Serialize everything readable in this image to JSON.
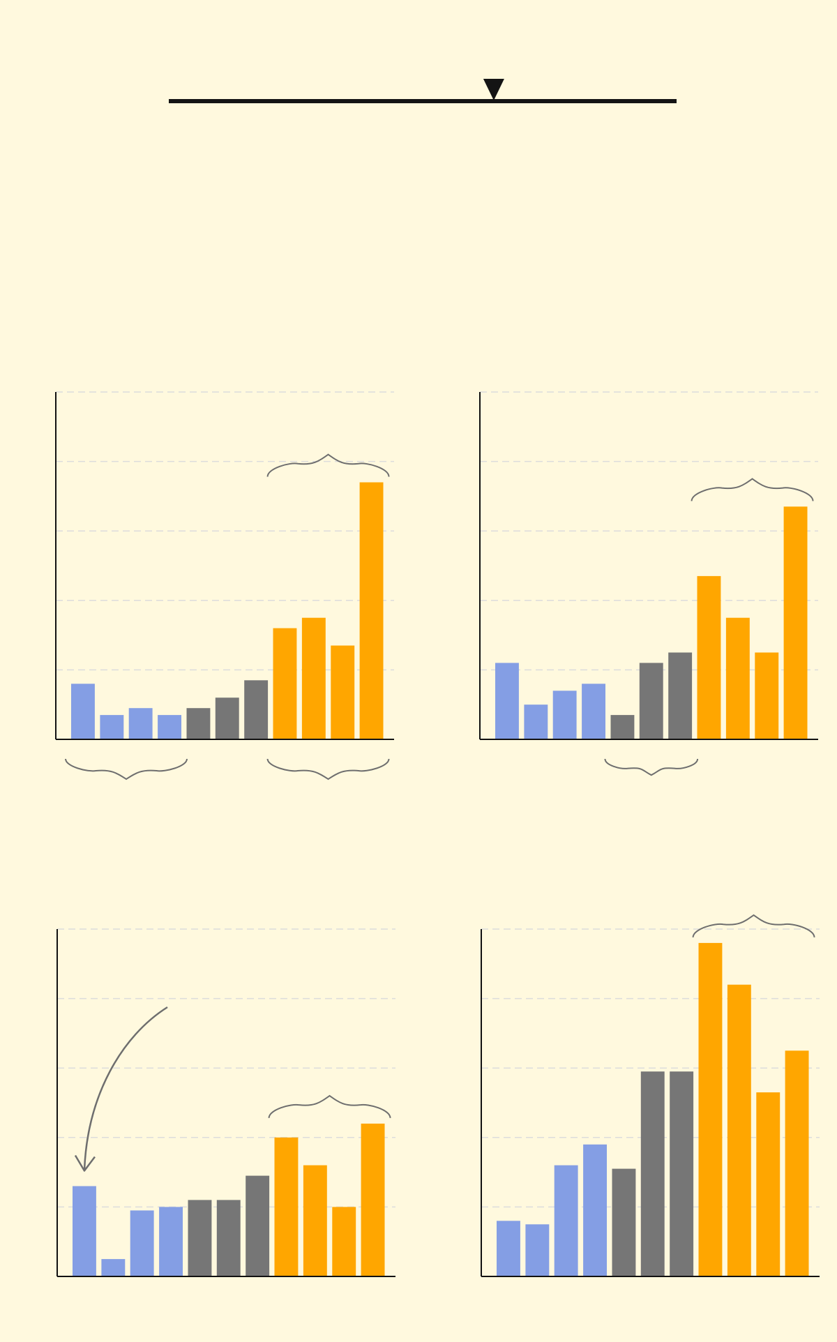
{
  "colors": {
    "background": "#fff9de",
    "blue": "#849ee4",
    "gray": "#767676",
    "orange": "#ffa600",
    "axis": "#111111",
    "grid": "#dcdcdc",
    "bracket": "#6e6e6e",
    "slider": "#141414"
  },
  "slider": {
    "value": 0.64
  },
  "chart_data": [
    {
      "type": "bar",
      "ylim": [
        0,
        5
      ],
      "grid": true,
      "values": [
        0.8,
        0.35,
        0.45,
        0.35,
        0.45,
        0.6,
        0.85,
        1.6,
        1.75,
        1.35,
        3.7
      ],
      "groups": [
        "blue",
        "blue",
        "blue",
        "blue",
        "gray",
        "gray",
        "gray",
        "orange",
        "orange",
        "orange",
        "orange"
      ]
    },
    {
      "type": "bar",
      "ylim": [
        0,
        5
      ],
      "grid": true,
      "values": [
        1.1,
        0.5,
        0.7,
        0.8,
        0.35,
        1.1,
        1.25,
        2.35,
        1.75,
        1.25,
        3.35
      ],
      "groups": [
        "blue",
        "blue",
        "blue",
        "blue",
        "gray",
        "gray",
        "gray",
        "orange",
        "orange",
        "orange",
        "orange"
      ]
    },
    {
      "type": "bar",
      "ylim": [
        0,
        5
      ],
      "grid": true,
      "values": [
        1.3,
        0.25,
        0.95,
        1.0,
        1.1,
        1.1,
        1.45,
        2.0,
        1.6,
        1.0,
        2.2
      ],
      "groups": [
        "blue",
        "blue",
        "blue",
        "blue",
        "gray",
        "gray",
        "gray",
        "orange",
        "orange",
        "orange",
        "orange"
      ]
    },
    {
      "type": "bar",
      "ylim": [
        0,
        5
      ],
      "grid": true,
      "values": [
        0.8,
        0.75,
        1.6,
        1.9,
        1.55,
        2.95,
        2.95,
        4.8,
        4.2,
        2.65,
        3.25
      ],
      "groups": [
        "blue",
        "blue",
        "blue",
        "blue",
        "gray",
        "gray",
        "gray",
        "orange",
        "orange",
        "orange",
        "orange"
      ]
    }
  ]
}
